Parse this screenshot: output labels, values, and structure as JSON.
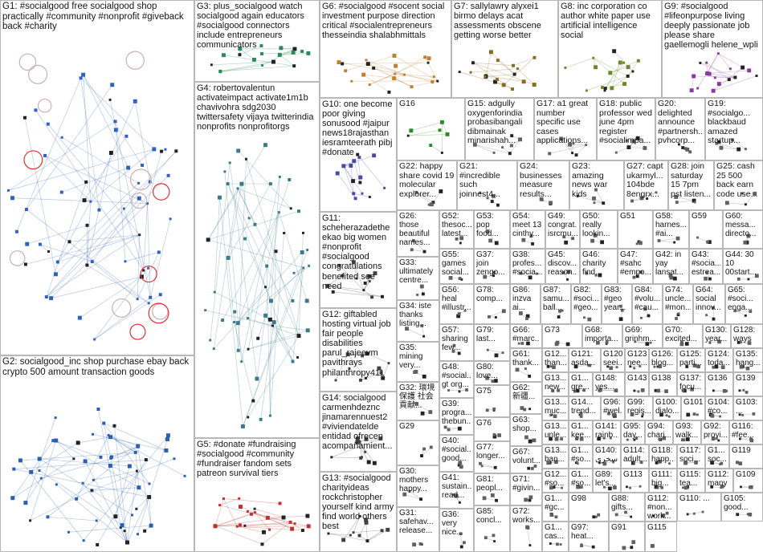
{
  "graph": {
    "groups": [
      {
        "id": "G1",
        "text": "G1: #socialgood free socialgood shop practically #community #nonprofit #giveback back #charity",
        "accent": "#3060c0"
      },
      {
        "id": "G2",
        "text": "G2: socialgood_inc shop purchase ebay back crypto 500 amount transaction goods",
        "accent": "#2a5fb0"
      },
      {
        "id": "G3",
        "text": "G3: plus_socialgood watch socialgood again educators #socialgood connectors include entrepreneurs communicators",
        "accent": "#2a8a5a"
      },
      {
        "id": "G4",
        "text": "G4: robertovalentun activateimpact activate1m1b chavivohra sdg2030 twittersafety vijaya twitterindia nonprofits nonprofitorgs",
        "accent": "#3a7a8a"
      },
      {
        "id": "G5",
        "text": "G5: #donate #fundraising #socialgood #community #fundraiser fandom sets patreon survival tiers",
        "accent": "#c03030"
      },
      {
        "id": "G6",
        "text": "G6: #socialgood #socent social investment purpose direction critical #socialentrepreneurs thesseindia shalabhmittals",
        "accent": "#c08030"
      },
      {
        "id": "G7",
        "text": "G7: sallylawry alyxei1 birmo delays acat assessments obscene getting worse better",
        "accent": "#8a6a20"
      },
      {
        "id": "G8",
        "text": "G8: inc corporation co author white paper use artificial intelligence social",
        "accent": "#6a8a2a"
      },
      {
        "id": "G9",
        "text": "G9: #socialgood #lifeonpurpose living deeply passionate job please share gaellemogli helene_wpli",
        "accent": "#8a3aa0"
      },
      {
        "id": "G10",
        "text": "G10: one become poor giving sonusood #jaipur news18rajasthan iesramteerath pibj #donate",
        "accent": "#4a4aa0"
      },
      {
        "id": "G16",
        "text": "G16",
        "accent": "#2a8a2a"
      },
      {
        "id": "G15",
        "text": "G15: adgully oxygenforindia probasibangali dibmainak minarishah...",
        "accent": "#606060"
      },
      {
        "id": "G17",
        "text": "G17: a1 great number specific use cases applications...",
        "accent": "#606060"
      },
      {
        "id": "G18",
        "text": "G18: public professor wed june 4pm register #socialimpa...",
        "accent": "#606060"
      },
      {
        "id": "G20",
        "text": "G20: delighted announce #partnersh... pvhcorp...",
        "accent": "#606060"
      },
      {
        "id": "G19",
        "text": "G19: #socialgo... blackbaud amazed startup...",
        "accent": "#606060"
      },
      {
        "id": "G11",
        "text": "G11: scheherazadethe ekao big women #nonprofit #socialgood congratulations benefited see need",
        "accent": "#404040"
      },
      {
        "id": "G22",
        "text": "G22: happy share covid 19 molecular explorer...",
        "accent": "#606060"
      },
      {
        "id": "G21",
        "text": "G21: #incredible such joinnest4...",
        "accent": "#606060"
      },
      {
        "id": "G24",
        "text": "G24: businesses measure results...",
        "accent": "#606060"
      },
      {
        "id": "G23",
        "text": "G23: amazing news war kids",
        "accent": "#606060"
      },
      {
        "id": "G27",
        "text": "G27: capt ukarmyl... 104bde 8engrx...",
        "accent": "#606060"
      },
      {
        "id": "G28",
        "text": "G28: join saturday 15 7pm pst listen...",
        "accent": "#606060"
      },
      {
        "id": "G25",
        "text": "G25: cash 25 500 back earn code use...",
        "accent": "#606060"
      },
      {
        "id": "G12",
        "text": "G12: giftabled hosting virtual job fair people disabilities parul_rajeevm pavithrays philanthropy411",
        "accent": "#404040"
      },
      {
        "id": "G14",
        "text": "G14: socialgood carmenhdeznc jinamarennuest2 #viviendatelde entidad ofrecen acompañamient...",
        "accent": "#404040"
      },
      {
        "id": "G13",
        "text": "G13: #socialgood charityideas rockchristopher yourself kind army find world others best",
        "accent": "#404040"
      },
      {
        "id": "G26",
        "text": "G26: those beautiful names...",
        "accent": "#606060"
      },
      {
        "id": "G33",
        "text": "G33: ultimately centre...",
        "accent": "#606060"
      },
      {
        "id": "G34",
        "text": "G34: iste thanks listing...",
        "accent": "#606060"
      },
      {
        "id": "G35",
        "text": "G35: mining very...",
        "accent": "#606060"
      },
      {
        "id": "G32",
        "text": "G32: 環境保護 社会貢献...",
        "accent": "#606060"
      },
      {
        "id": "G29",
        "text": "G29",
        "accent": "#606060"
      },
      {
        "id": "G30",
        "text": "G30: mothers happy...",
        "accent": "#606060"
      },
      {
        "id": "G31",
        "text": "G31: safehav... release...",
        "accent": "#606060"
      },
      {
        "id": "G52",
        "text": "G52: thesoc... latest...",
        "accent": "#606060"
      },
      {
        "id": "G53",
        "text": "G53: pop food...",
        "accent": "#606060"
      },
      {
        "id": "G54",
        "text": "G54: meet 13 cinthy...",
        "accent": "#606060"
      },
      {
        "id": "G49",
        "text": "G49: congrat... isrcmu...",
        "accent": "#606060"
      },
      {
        "id": "G50",
        "text": "G50: really lookin...",
        "accent": "#606060"
      },
      {
        "id": "G51",
        "text": "G51",
        "accent": "#606060"
      },
      {
        "id": "G58",
        "text": "G58: harnes... #ai...",
        "accent": "#606060"
      },
      {
        "id": "G59",
        "text": "G59",
        "accent": "#606060"
      },
      {
        "id": "G60",
        "text": "G60: messa... directo...",
        "accent": "#606060"
      },
      {
        "id": "G55",
        "text": "G55: games social...",
        "accent": "#606060"
      },
      {
        "id": "G37",
        "text": "G37: join zengo...",
        "accent": "#606060"
      },
      {
        "id": "G38",
        "text": "G38: profes... #socia...",
        "accent": "#606060"
      },
      {
        "id": "G45",
        "text": "G45: discov... reason...",
        "accent": "#606060"
      },
      {
        "id": "G46",
        "text": "G46: charity find...",
        "accent": "#606060"
      },
      {
        "id": "G47",
        "text": "G47: #sahc #empo...",
        "accent": "#606060"
      },
      {
        "id": "G42",
        "text": "G42: in yay lansat...",
        "accent": "#606060"
      },
      {
        "id": "G43",
        "text": "G43: #socia... estrea...",
        "accent": "#606060"
      },
      {
        "id": "G44",
        "text": "G44: 30 10 00start...",
        "accent": "#606060"
      },
      {
        "id": "G56",
        "text": "G56: heal #illustr...",
        "accent": "#606060"
      },
      {
        "id": "G78",
        "text": "G78: comp...",
        "accent": "#606060"
      },
      {
        "id": "G86",
        "text": "G86: inzva ai...",
        "accent": "#606060"
      },
      {
        "id": "G87",
        "text": "G87: samu... ball...",
        "accent": "#606060"
      },
      {
        "id": "G82",
        "text": "G82: #soci... #geo...",
        "accent": "#606060"
      },
      {
        "id": "G83",
        "text": "G83: #geo year...",
        "accent": "#606060"
      },
      {
        "id": "G84",
        "text": "G84: #volu... #cau...",
        "accent": "#606060"
      },
      {
        "id": "G74",
        "text": "G74: uncle... #mon...",
        "accent": "#606060"
      },
      {
        "id": "G64",
        "text": "G64: social innov...",
        "accent": "#606060"
      },
      {
        "id": "G65",
        "text": "G65: #soci... enga...",
        "accent": "#606060"
      },
      {
        "id": "G57",
        "text": "G57: sharing few...",
        "accent": "#606060"
      },
      {
        "id": "G79",
        "text": "G79: last...",
        "accent": "#606060"
      },
      {
        "id": "G66",
        "text": "G66: #marc...",
        "accent": "#606060"
      },
      {
        "id": "G73",
        "text": "G73",
        "accent": "#606060"
      },
      {
        "id": "G68",
        "text": "G68: importa...",
        "accent": "#606060"
      },
      {
        "id": "G69",
        "text": "G69: grinhm...",
        "accent": "#606060"
      },
      {
        "id": "G70",
        "text": "G70: excited...",
        "accent": "#606060"
      },
      {
        "id": "G130",
        "text": "G130: year...",
        "accent": "#606060"
      },
      {
        "id": "G128",
        "text": "G128: ways",
        "accent": "#606060"
      },
      {
        "id": "G48",
        "text": "G48: #social... gt org...",
        "accent": "#606060"
      },
      {
        "id": "G80",
        "text": "G80: love...",
        "accent": "#606060"
      },
      {
        "id": "G61",
        "text": "G61: thank...",
        "accent": "#606060"
      },
      {
        "id": "G121",
        "text": "G121: asda...",
        "accent": "#606060"
      },
      {
        "id": "G120",
        "text": "G120: seei...",
        "accent": "#606060"
      },
      {
        "id": "G123",
        "text": "G123: nee...",
        "accent": "#606060"
      },
      {
        "id": "G126",
        "text": "G126: blog...",
        "accent": "#606060"
      },
      {
        "id": "G125",
        "text": "G125: parti...",
        "accent": "#606060"
      },
      {
        "id": "G124",
        "text": "G124: toda...",
        "accent": "#606060"
      },
      {
        "id": "G135",
        "text": "G135: hang...",
        "accent": "#606060"
      },
      {
        "id": "G75",
        "text": "G75",
        "accent": "#606060"
      },
      {
        "id": "G62",
        "text": "G62: 新疆...",
        "accent": "#606060"
      },
      {
        "id": "G148",
        "text": "G148: yes...",
        "accent": "#606060"
      },
      {
        "id": "G143",
        "text": "G143",
        "accent": "#606060"
      },
      {
        "id": "G138",
        "text": "G138",
        "accent": "#606060"
      },
      {
        "id": "G137",
        "text": "G137: focu...",
        "accent": "#606060"
      },
      {
        "id": "G136",
        "text": "G136",
        "accent": "#606060"
      },
      {
        "id": "G139",
        "text": "G139",
        "accent": "#606060"
      },
      {
        "id": "G39",
        "text": "G39: progra... thebun...",
        "accent": "#606060"
      },
      {
        "id": "G76",
        "text": "G76",
        "accent": "#606060"
      },
      {
        "id": "G63",
        "text": "G63: shop...",
        "accent": "#606060"
      },
      {
        "id": "G96",
        "text": "G96: #wel...",
        "accent": "#606060"
      },
      {
        "id": "G99",
        "text": "G99: regis...",
        "accent": "#606060"
      },
      {
        "id": "G100",
        "text": "G100: dialo...",
        "accent": "#606060"
      },
      {
        "id": "G101",
        "text": "G101",
        "accent": "#606060"
      },
      {
        "id": "G104",
        "text": "G104: #co...",
        "accent": "#606060"
      },
      {
        "id": "G40",
        "text": "G40: #social... good...",
        "accent": "#606060"
      },
      {
        "id": "G77",
        "text": "G77: longer...",
        "accent": "#606060"
      },
      {
        "id": "G67",
        "text": "G67: volunt...",
        "accent": "#606060"
      },
      {
        "id": "G141",
        "text": "G141: rainb...",
        "accent": "#606060"
      },
      {
        "id": "G95",
        "text": "G95: day...",
        "accent": "#606060"
      },
      {
        "id": "G94",
        "text": "G94: chari...",
        "accent": "#606060"
      },
      {
        "id": "G93",
        "text": "G93: walk...",
        "accent": "#606060"
      },
      {
        "id": "G92",
        "text": "G92: provi...",
        "accent": "#606060"
      },
      {
        "id": "G103",
        "text": "G103: ...",
        "accent": "#606060"
      },
      {
        "id": "G41",
        "text": "G41: sustain... read...",
        "accent": "#606060"
      },
      {
        "id": "G81",
        "text": "G81: peopl...",
        "accent": "#606060"
      },
      {
        "id": "G71",
        "text": "G71: #givin...",
        "accent": "#606060"
      },
      {
        "id": "G140",
        "text": "G140: سخری",
        "accent": "#606060"
      },
      {
        "id": "G114",
        "text": "G114: adult...",
        "accent": "#606060"
      },
      {
        "id": "G118",
        "text": "G118: happ...",
        "accent": "#606060"
      },
      {
        "id": "G117",
        "text": "G117: soci...",
        "accent": "#606060"
      },
      {
        "id": "G116",
        "text": "G116: #fee...",
        "accent": "#606060"
      },
      {
        "id": "G119",
        "text": "G119",
        "accent": "#606060"
      },
      {
        "id": "G89",
        "text": "G89: let's...",
        "accent": "#606060"
      },
      {
        "id": "G113",
        "text": "G113",
        "accent": "#606060"
      },
      {
        "id": "G111",
        "text": "G111: big...",
        "accent": "#606060"
      },
      {
        "id": "G115",
        "text": "G115: tea...",
        "accent": "#606060"
      },
      {
        "id": "G112",
        "text": "G112: many",
        "accent": "#606060"
      },
      {
        "id": "G36",
        "text": "G36: very nice...",
        "accent": "#606060"
      },
      {
        "id": "G85",
        "text": "G85: concl...",
        "accent": "#606060"
      },
      {
        "id": "G72",
        "text": "G72: works...",
        "accent": "#606060"
      },
      {
        "id": "G98",
        "text": "G98",
        "accent": "#606060"
      },
      {
        "id": "G88",
        "text": "G88: gifts...",
        "accent": "#606060"
      },
      {
        "id": "G112b",
        "text": "G112: #non... work...",
        "accent": "#606060"
      },
      {
        "id": "G110",
        "text": "G110: ...",
        "accent": "#606060"
      },
      {
        "id": "G97",
        "text": "G97: heat...",
        "accent": "#606060"
      },
      {
        "id": "G91",
        "text": "G91",
        "accent": "#606060"
      },
      {
        "id": "G115b",
        "text": "G115",
        "accent": "#606060"
      },
      {
        "id": "G105",
        "text": "G105: good...",
        "accent": "#606060"
      },
      {
        "id": "G109",
        "text": "G109",
        "accent": "#606060"
      },
      {
        "id": "G122",
        "text": "G12... than...",
        "accent": "#606060"
      },
      {
        "id": "G1x1",
        "text": "G1... #so...",
        "accent": "#606060"
      },
      {
        "id": "G1x2",
        "text": "G1... #gc...",
        "accent": "#606060"
      },
      {
        "id": "G1x3",
        "text": "G1... cas...",
        "accent": "#606060"
      },
      {
        "id": "G12a",
        "text": "G12... #so...",
        "accent": "#606060"
      },
      {
        "id": "G13a",
        "text": "G13... new...",
        "accent": "#606060"
      },
      {
        "id": "G13b",
        "text": "G13... muc...",
        "accent": "#606060"
      },
      {
        "id": "G13c",
        "text": "G13... unle...",
        "accent": "#606060"
      },
      {
        "id": "G13d",
        "text": "G13... ban...",
        "accent": "#606060"
      },
      {
        "id": "G1y1",
        "text": "G1... gre...",
        "accent": "#606060"
      },
      {
        "id": "G1y2",
        "text": "G1... kee...",
        "accent": "#606060"
      },
      {
        "id": "G1y3",
        "text": "G1... #so...",
        "accent": "#606060"
      },
      {
        "id": "G1y4",
        "text": "G1... soc...",
        "accent": "#606060"
      },
      {
        "id": "G14x",
        "text": "G14... trend...",
        "accent": "#606060"
      }
    ]
  }
}
